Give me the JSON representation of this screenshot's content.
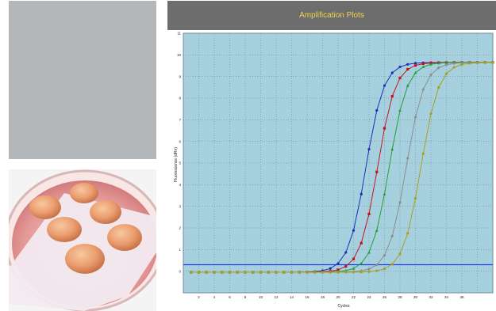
{
  "chart_window": {
    "title": "Amplification Plots"
  },
  "colors": {
    "plot_bg": "#a7d0df",
    "threshold": "#1f3de0",
    "title_text": "#f2d24a",
    "title_bar": "#6d6d6d"
  },
  "chart_data": {
    "type": "line",
    "title": "Amplification Plots",
    "xlabel": "Cycles",
    "ylabel": "Fluorescence (dRn)",
    "xlim": [
      0,
      40
    ],
    "ylim": [
      -1,
      11
    ],
    "grid": true,
    "x_ticks": [
      "2",
      "4",
      "6",
      "8",
      "10",
      "12",
      "14",
      "16",
      "18",
      "20",
      "22",
      "24",
      "26",
      "28",
      "30",
      "32",
      "34",
      "36"
    ],
    "y_ticks": [
      "0",
      "1",
      "2",
      "3",
      "4",
      "5",
      "6",
      "7",
      "8",
      "9",
      "10",
      "11"
    ],
    "threshold": 0.3,
    "baseline": -0.05,
    "plateau": 9.65,
    "x": [
      1,
      2,
      3,
      4,
      5,
      6,
      7,
      8,
      9,
      10,
      11,
      12,
      13,
      14,
      15,
      16,
      17,
      18,
      19,
      20,
      21,
      22,
      23,
      24,
      25,
      26,
      27,
      28,
      29,
      30,
      31,
      32,
      33,
      34,
      35,
      36,
      37,
      38,
      39,
      40
    ],
    "series": [
      {
        "color": "#1a2fb8",
        "marker": "circle",
        "midpoint": 23.6,
        "slope": 1.15
      },
      {
        "color": "#c4141a",
        "marker": "square",
        "midpoint": 25.1,
        "slope": 1.15
      },
      {
        "color": "#20a030",
        "marker": "triangle",
        "midpoint": 26.6,
        "slope": 1.15
      },
      {
        "color": "#8c8c8c",
        "marker": "diamond",
        "midpoint": 28.8,
        "slope": 1.15
      },
      {
        "color": "#a6a020",
        "marker": "circle",
        "midpoint": 30.7,
        "slope": 1.15
      }
    ]
  }
}
